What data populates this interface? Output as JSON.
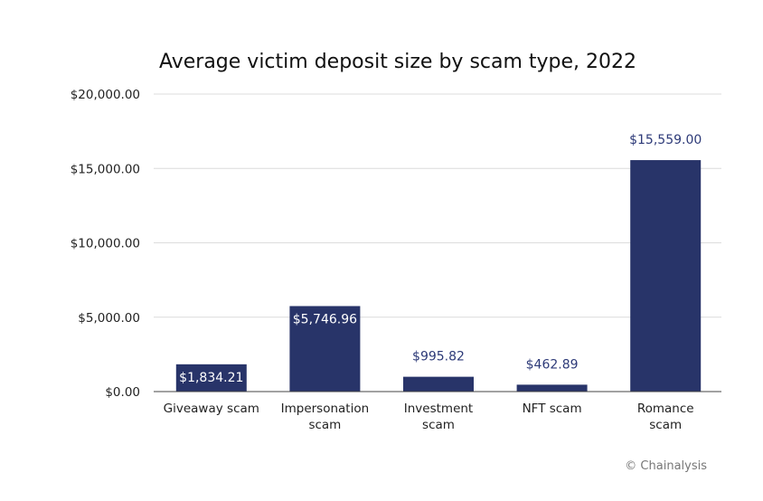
{
  "chart_data": {
    "type": "bar",
    "title": "Average victim deposit size by scam type, 2022",
    "xlabel": "",
    "ylabel": "",
    "categories": [
      [
        "Giveaway scam"
      ],
      [
        "Impersonation",
        "scam"
      ],
      [
        "Investment",
        "scam"
      ],
      [
        "NFT scam"
      ],
      [
        "Romance",
        "scam"
      ]
    ],
    "values": [
      1834.21,
      5746.96,
      995.82,
      462.89,
      15559.0
    ],
    "data_labels": [
      "$1,834.21",
      "$5,746.96",
      "$995.82",
      "$462.89",
      "$15,559.00"
    ],
    "label_inside": [
      true,
      true,
      false,
      false,
      false
    ],
    "ylim": [
      0,
      20000
    ],
    "yticks": [
      0,
      5000,
      10000,
      15000,
      20000
    ],
    "ytick_labels": [
      "$0.00",
      "$5,000.00",
      "$10,000.00",
      "$15,000.00",
      "$20,000.00"
    ],
    "grid": true,
    "legend": "none",
    "colors": {
      "bar": "#283469",
      "label_outside": "#2d3a78",
      "grid": "#dcdcdc"
    }
  },
  "credit": "© Chainalysis"
}
